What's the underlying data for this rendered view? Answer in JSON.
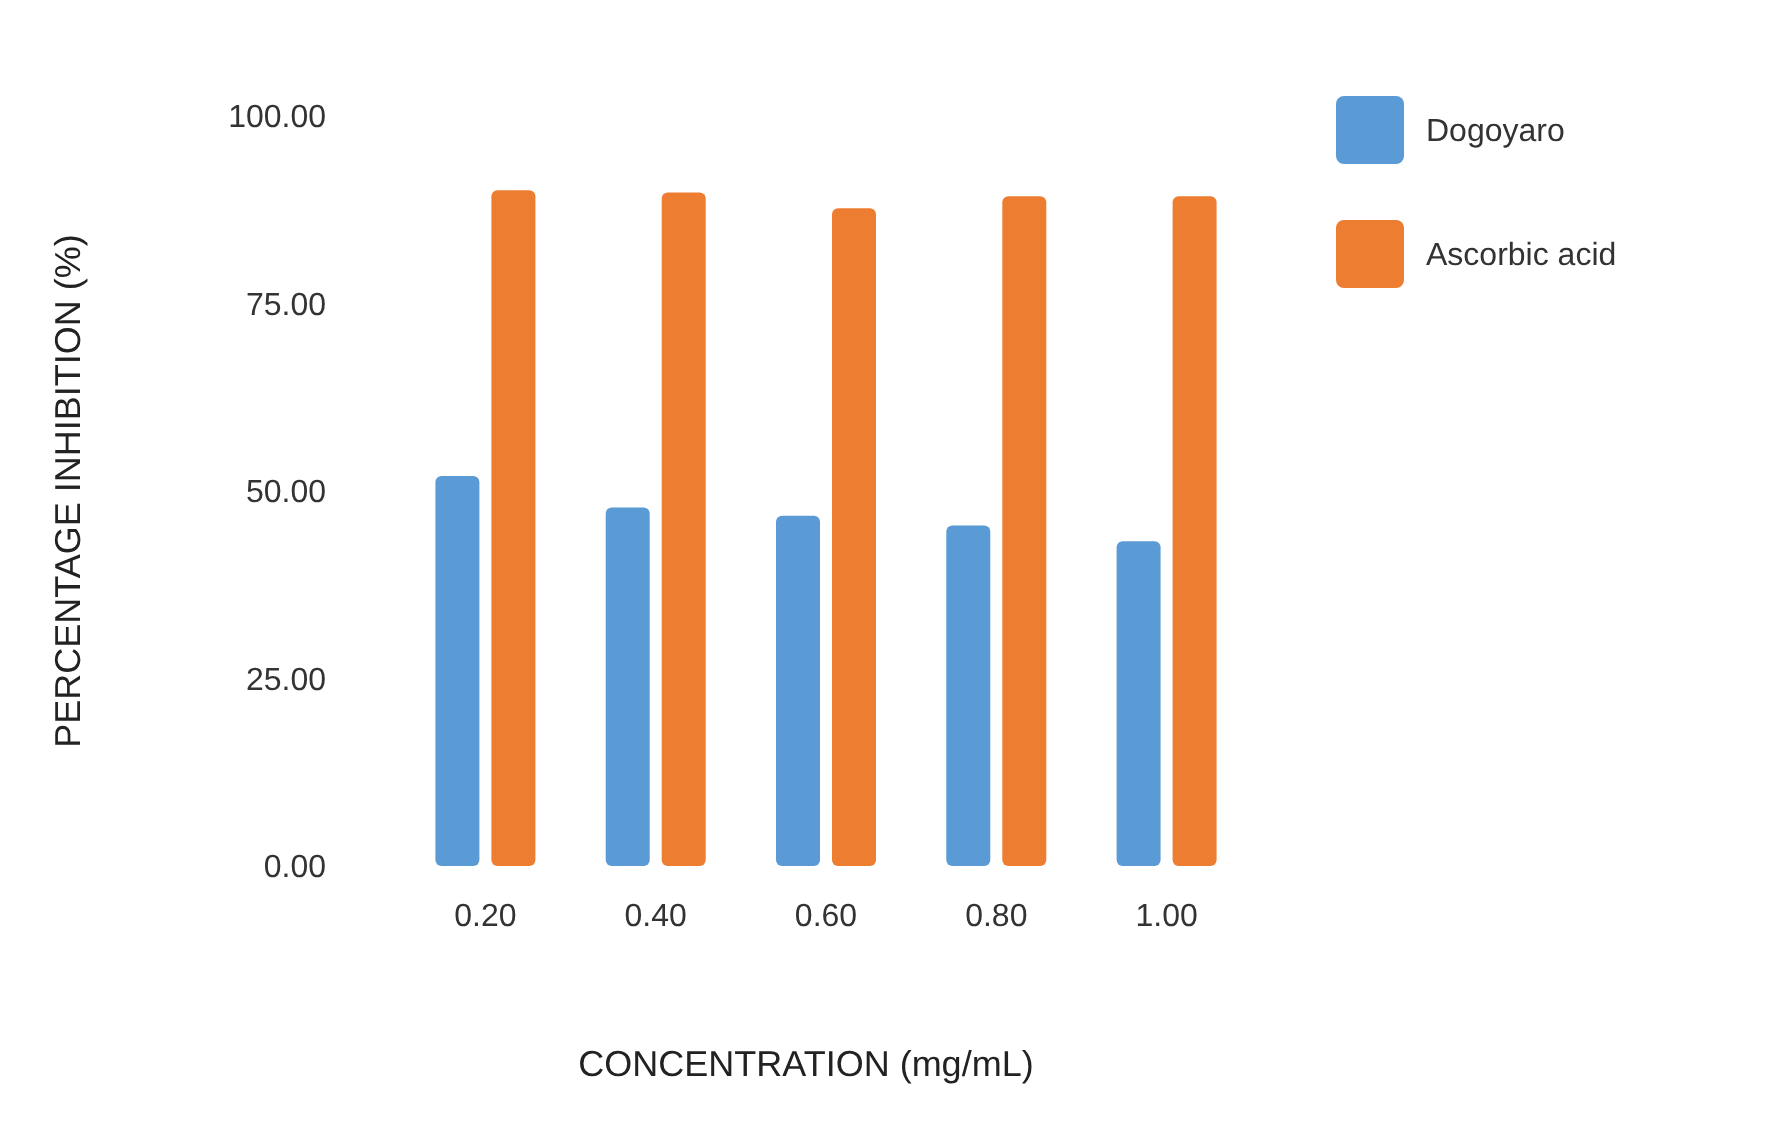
{
  "chart_data": {
    "type": "bar",
    "xlabel": "CONCENTRATION (mg/mL)",
    "ylabel": "PERCENTAGE INHIBITION (%)",
    "categories": [
      "0.20",
      "0.40",
      "0.60",
      "0.80",
      "1.00"
    ],
    "series": [
      {
        "name": "Dogoyaro",
        "color": "#5b9bd5",
        "values": [
          52.0,
          47.8,
          46.7,
          45.4,
          43.3
        ]
      },
      {
        "name": "Ascorbic acid",
        "color": "#ed7d31",
        "values": [
          90.1,
          89.8,
          87.7,
          89.3,
          89.3
        ]
      }
    ],
    "ylim": [
      0,
      100
    ],
    "yticks": [
      {
        "value": 0,
        "label": "0.00"
      },
      {
        "value": 25,
        "label": "25.00"
      },
      {
        "value": 50,
        "label": "50.00"
      },
      {
        "value": 75,
        "label": "75.00"
      },
      {
        "value": 100,
        "label": "100.00"
      }
    ],
    "legend": "top right"
  }
}
